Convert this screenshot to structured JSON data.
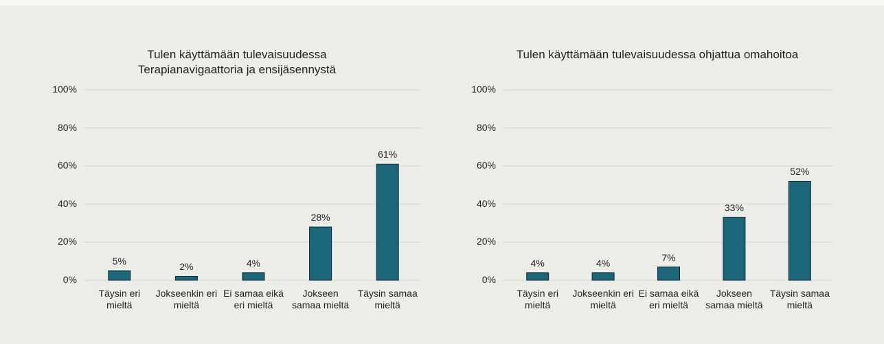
{
  "chart_data": [
    {
      "type": "bar",
      "title": "Tulen käyttämään tulevaisuudessa Terapianavigaattoria ja ensijäsennystä",
      "categories": [
        "Täysin eri mieltä",
        "Jokseenkin eri mieltä",
        "Ei samaa eikä eri mieltä",
        "Jokseen samaa mieltä",
        "Täysin samaa mieltä"
      ],
      "values": [
        5,
        2,
        4,
        28,
        61
      ],
      "value_labels": [
        "5%",
        "2%",
        "4%",
        "28%",
        "61%"
      ],
      "color": "#1b6679",
      "ylim": [
        0,
        100
      ],
      "yticks": [
        {
          "value": 0,
          "label": "0%"
        },
        {
          "value": 20,
          "label": "20%"
        },
        {
          "value": 40,
          "label": "40%"
        },
        {
          "value": 60,
          "label": "60%"
        },
        {
          "value": 80,
          "label": "80%"
        },
        {
          "value": 100,
          "label": "100%"
        }
      ],
      "grid": true
    },
    {
      "type": "bar",
      "title": "Tulen käyttämään tulevaisuudessa ohjattua omahoitoa",
      "categories": [
        "Täysin eri mieltä",
        "Jokseenkin eri mieltä",
        "Ei samaa eikä eri mieltä",
        "Jokseen samaa mieltä",
        "Täysin samaa mieltä"
      ],
      "values": [
        4,
        4,
        7,
        33,
        52
      ],
      "value_labels": [
        "4%",
        "4%",
        "7%",
        "33%",
        "52%"
      ],
      "color": "#1b6679",
      "ylim": [
        0,
        100
      ],
      "yticks": [
        {
          "value": 0,
          "label": "0%"
        },
        {
          "value": 20,
          "label": "20%"
        },
        {
          "value": 40,
          "label": "40%"
        },
        {
          "value": 60,
          "label": "60%"
        },
        {
          "value": 80,
          "label": "80%"
        },
        {
          "value": 100,
          "label": "100%"
        }
      ],
      "grid": true
    }
  ]
}
